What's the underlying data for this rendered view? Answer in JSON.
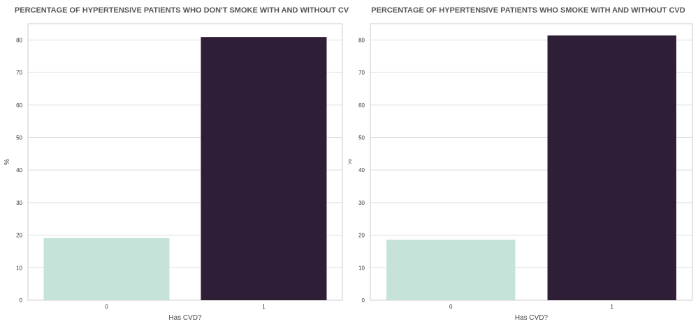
{
  "colors": {
    "bar_0": "#c5e3d8",
    "bar_1": "#2e1f36",
    "grid": "#dddddd",
    "frame": "#cccccc"
  },
  "chart_data": [
    {
      "type": "bar",
      "title": "PERCENTAGE OF HYPERTENSIVE PATIENTS WHO DON'T SMOKE WITH AND WITHOUT CVD",
      "xlabel": "Has CVD?",
      "ylabel": "%",
      "categories": [
        "0",
        "1"
      ],
      "values": [
        19.1,
        80.9
      ],
      "ylim": [
        0,
        85
      ],
      "yticks": [
        0,
        10,
        20,
        30,
        40,
        50,
        60,
        70,
        80
      ],
      "grid": true
    },
    {
      "type": "bar",
      "title": "PERCENTAGE OF HYPERTENSIVE PATIENTS WHO SMOKE WITH AND WITHOUT CVD",
      "xlabel": "Has CVD?",
      "ylabel": "%",
      "categories": [
        "0",
        "1"
      ],
      "values": [
        18.6,
        81.4
      ],
      "ylim": [
        0,
        85
      ],
      "yticks": [
        0,
        10,
        20,
        30,
        40,
        50,
        60,
        70,
        80
      ],
      "grid": true
    }
  ]
}
